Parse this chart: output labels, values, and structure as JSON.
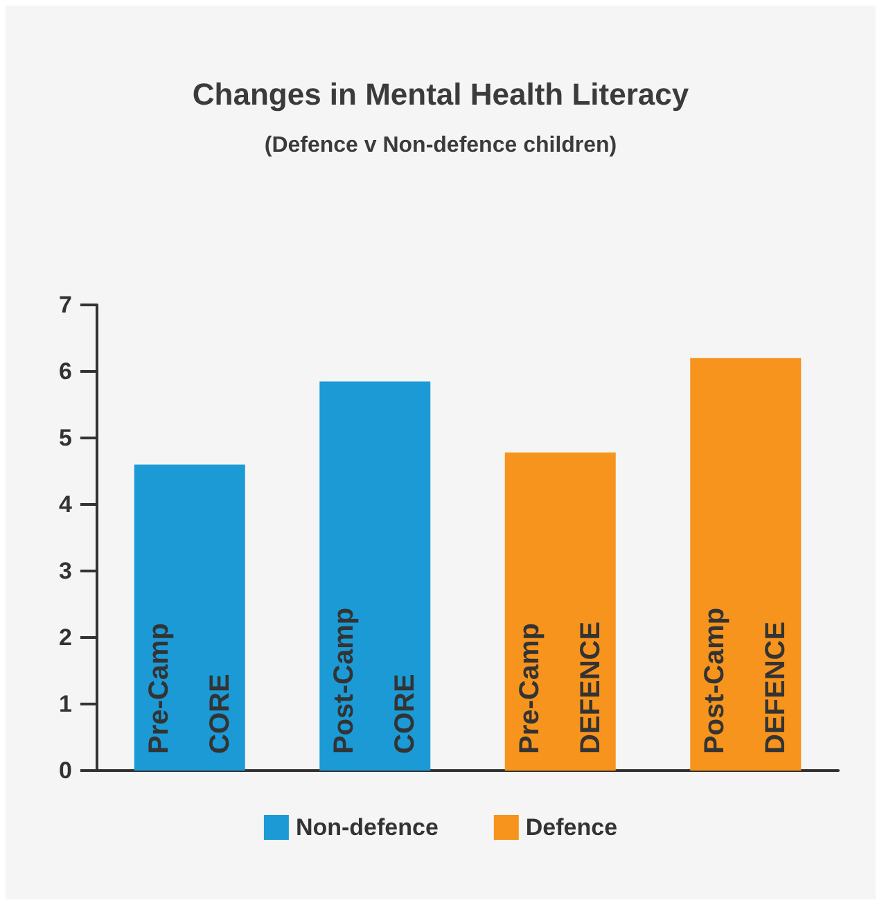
{
  "chart_data": {
    "type": "bar",
    "title": "Changes in Mental Health Literacy",
    "subtitle": "(Defence v Non-defence children)",
    "categories": [
      "Pre-Camp\nCORE",
      "Post-Camp\nCORE",
      "Pre-Camp\nDEFENCE",
      "Post-Camp\nDEFENCE"
    ],
    "series": [
      {
        "name": "Non-defence",
        "color": "#1b9ad6",
        "values": [
          4.6,
          5.85,
          null,
          null
        ]
      },
      {
        "name": "Defence",
        "color": "#f7941d",
        "values": [
          null,
          null,
          4.78,
          6.2
        ]
      }
    ],
    "ylim": [
      0,
      7
    ],
    "yticks": [
      0,
      1,
      2,
      3,
      4,
      5,
      6,
      7
    ],
    "grid": false,
    "legend": "bottom"
  }
}
